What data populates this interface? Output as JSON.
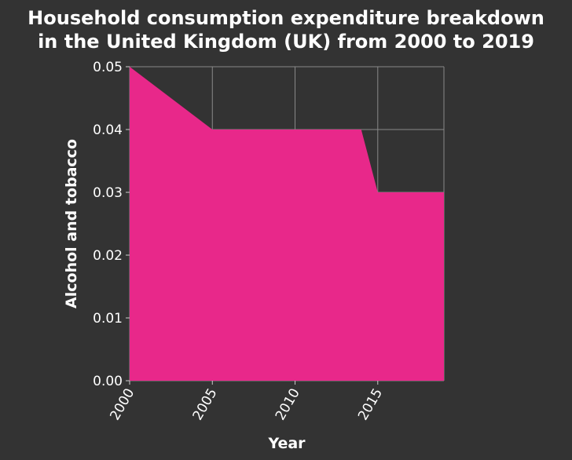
{
  "chart_data": {
    "type": "area",
    "title_lines": [
      "Household consumption expenditure breakdown",
      "in the United Kingdom (UK) from 2000 to 2019"
    ],
    "xlabel": "Year",
    "ylabel": "Alcohol and tobacco",
    "xlim": [
      2000,
      2019
    ],
    "ylim": [
      0,
      0.05
    ],
    "x_ticks": [
      2000,
      2005,
      2010,
      2015
    ],
    "x_tick_labels": [
      "2000",
      "2005",
      "2010",
      "2015"
    ],
    "y_ticks": [
      0,
      0.01,
      0.02,
      0.03,
      0.04,
      0.05
    ],
    "y_tick_labels": [
      "0.00",
      "0.01",
      "0.02",
      "0.03",
      "0.04",
      "0.05"
    ],
    "grid": true,
    "series": [
      {
        "x": [
          2000,
          2005,
          2014,
          2015,
          2019
        ],
        "y": [
          0.05,
          0.04,
          0.04,
          0.03,
          0.03
        ],
        "color": "#e8288a"
      }
    ],
    "colors": {
      "background": "#333333",
      "grid": "#8a8a8a",
      "text": "#ffffff"
    }
  }
}
